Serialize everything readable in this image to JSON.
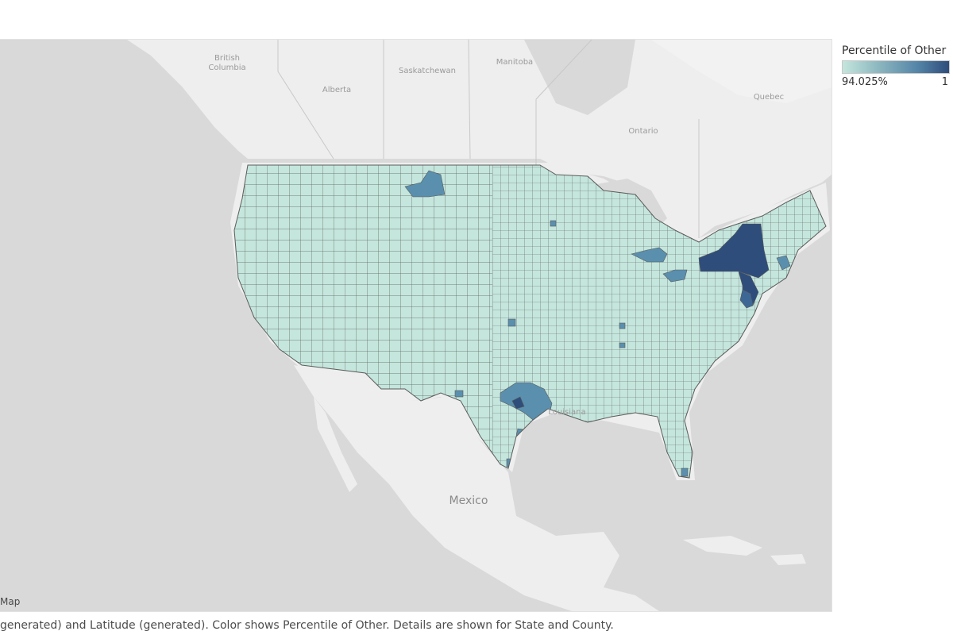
{
  "legend": {
    "title": "Percentile of Other",
    "min_label": "94.025%",
    "max_label": "1",
    "color_low": "#c4e6dc",
    "color_high": "#2e4d7b"
  },
  "colors": {
    "land": "#eeeeee",
    "water": "#d9d9d9",
    "base_fill": "#c4e6dc",
    "county_line": "#5b5b5b",
    "mid_fill": "#5a8fae",
    "high_fill": "#2e4d7b"
  },
  "map": {
    "credit": "Map",
    "places": {
      "british_columbia_1": "British",
      "british_columbia_2": "Columbia",
      "alberta": "Alberta",
      "saskatchewan": "Saskatchewan",
      "manitoba": "Manitoba",
      "ontario": "Ontario",
      "quebec": "Quebec",
      "mexico": "Mexico",
      "louisiana": "Louisiana"
    }
  },
  "caption": "generated) and Latitude (generated).  Color shows Percentile of Other.  Details are shown for State and County."
}
